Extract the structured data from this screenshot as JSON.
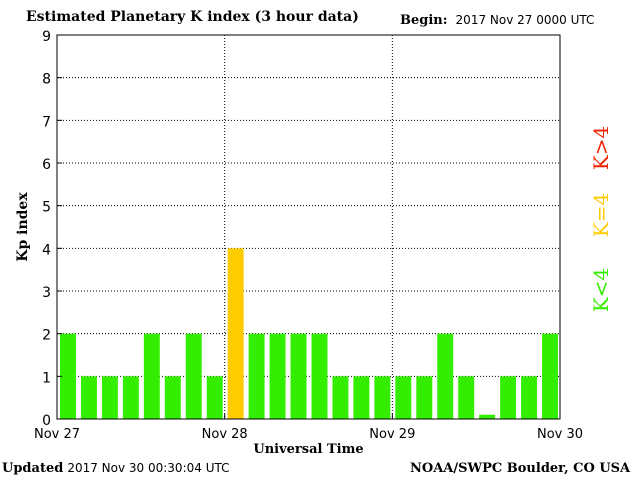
{
  "header": {
    "title": "Estimated Planetary K index (3 hour data)",
    "begin_label": "Begin:",
    "begin_value": "2017 Nov 27 0000 UTC"
  },
  "footer": {
    "updated_label": "Updated",
    "updated_value": "2017 Nov 30 00:30:04 UTC",
    "credit": "NOAA/SWPC Boulder, CO USA"
  },
  "legend": {
    "items": [
      {
        "label": "K<4",
        "color": "#33ee00"
      },
      {
        "label": "K=4",
        "color": "#ffcc00"
      },
      {
        "label": "K>4",
        "color": "#ee2200"
      }
    ]
  },
  "chart_data": {
    "type": "bar",
    "title": "Estimated Planetary K index (3 hour data)",
    "xlabel": "Universal Time",
    "ylabel": "Kp index",
    "ylim": [
      0,
      9
    ],
    "yticks": [
      "0",
      "1",
      "2",
      "3",
      "4",
      "5",
      "6",
      "7",
      "8",
      "9"
    ],
    "xticks": [
      "Nov 27",
      "Nov 28",
      "Nov 29",
      "Nov 30"
    ],
    "grid": true,
    "values": [
      2,
      1,
      1,
      1,
      2,
      1,
      2,
      1,
      4,
      2,
      2,
      2,
      2,
      1,
      1,
      1,
      1,
      1,
      2,
      1,
      0.1,
      1,
      1,
      2
    ],
    "colors": {
      "low": "#33ee00",
      "equal": "#ffcc00",
      "high": "#ee2200"
    }
  }
}
